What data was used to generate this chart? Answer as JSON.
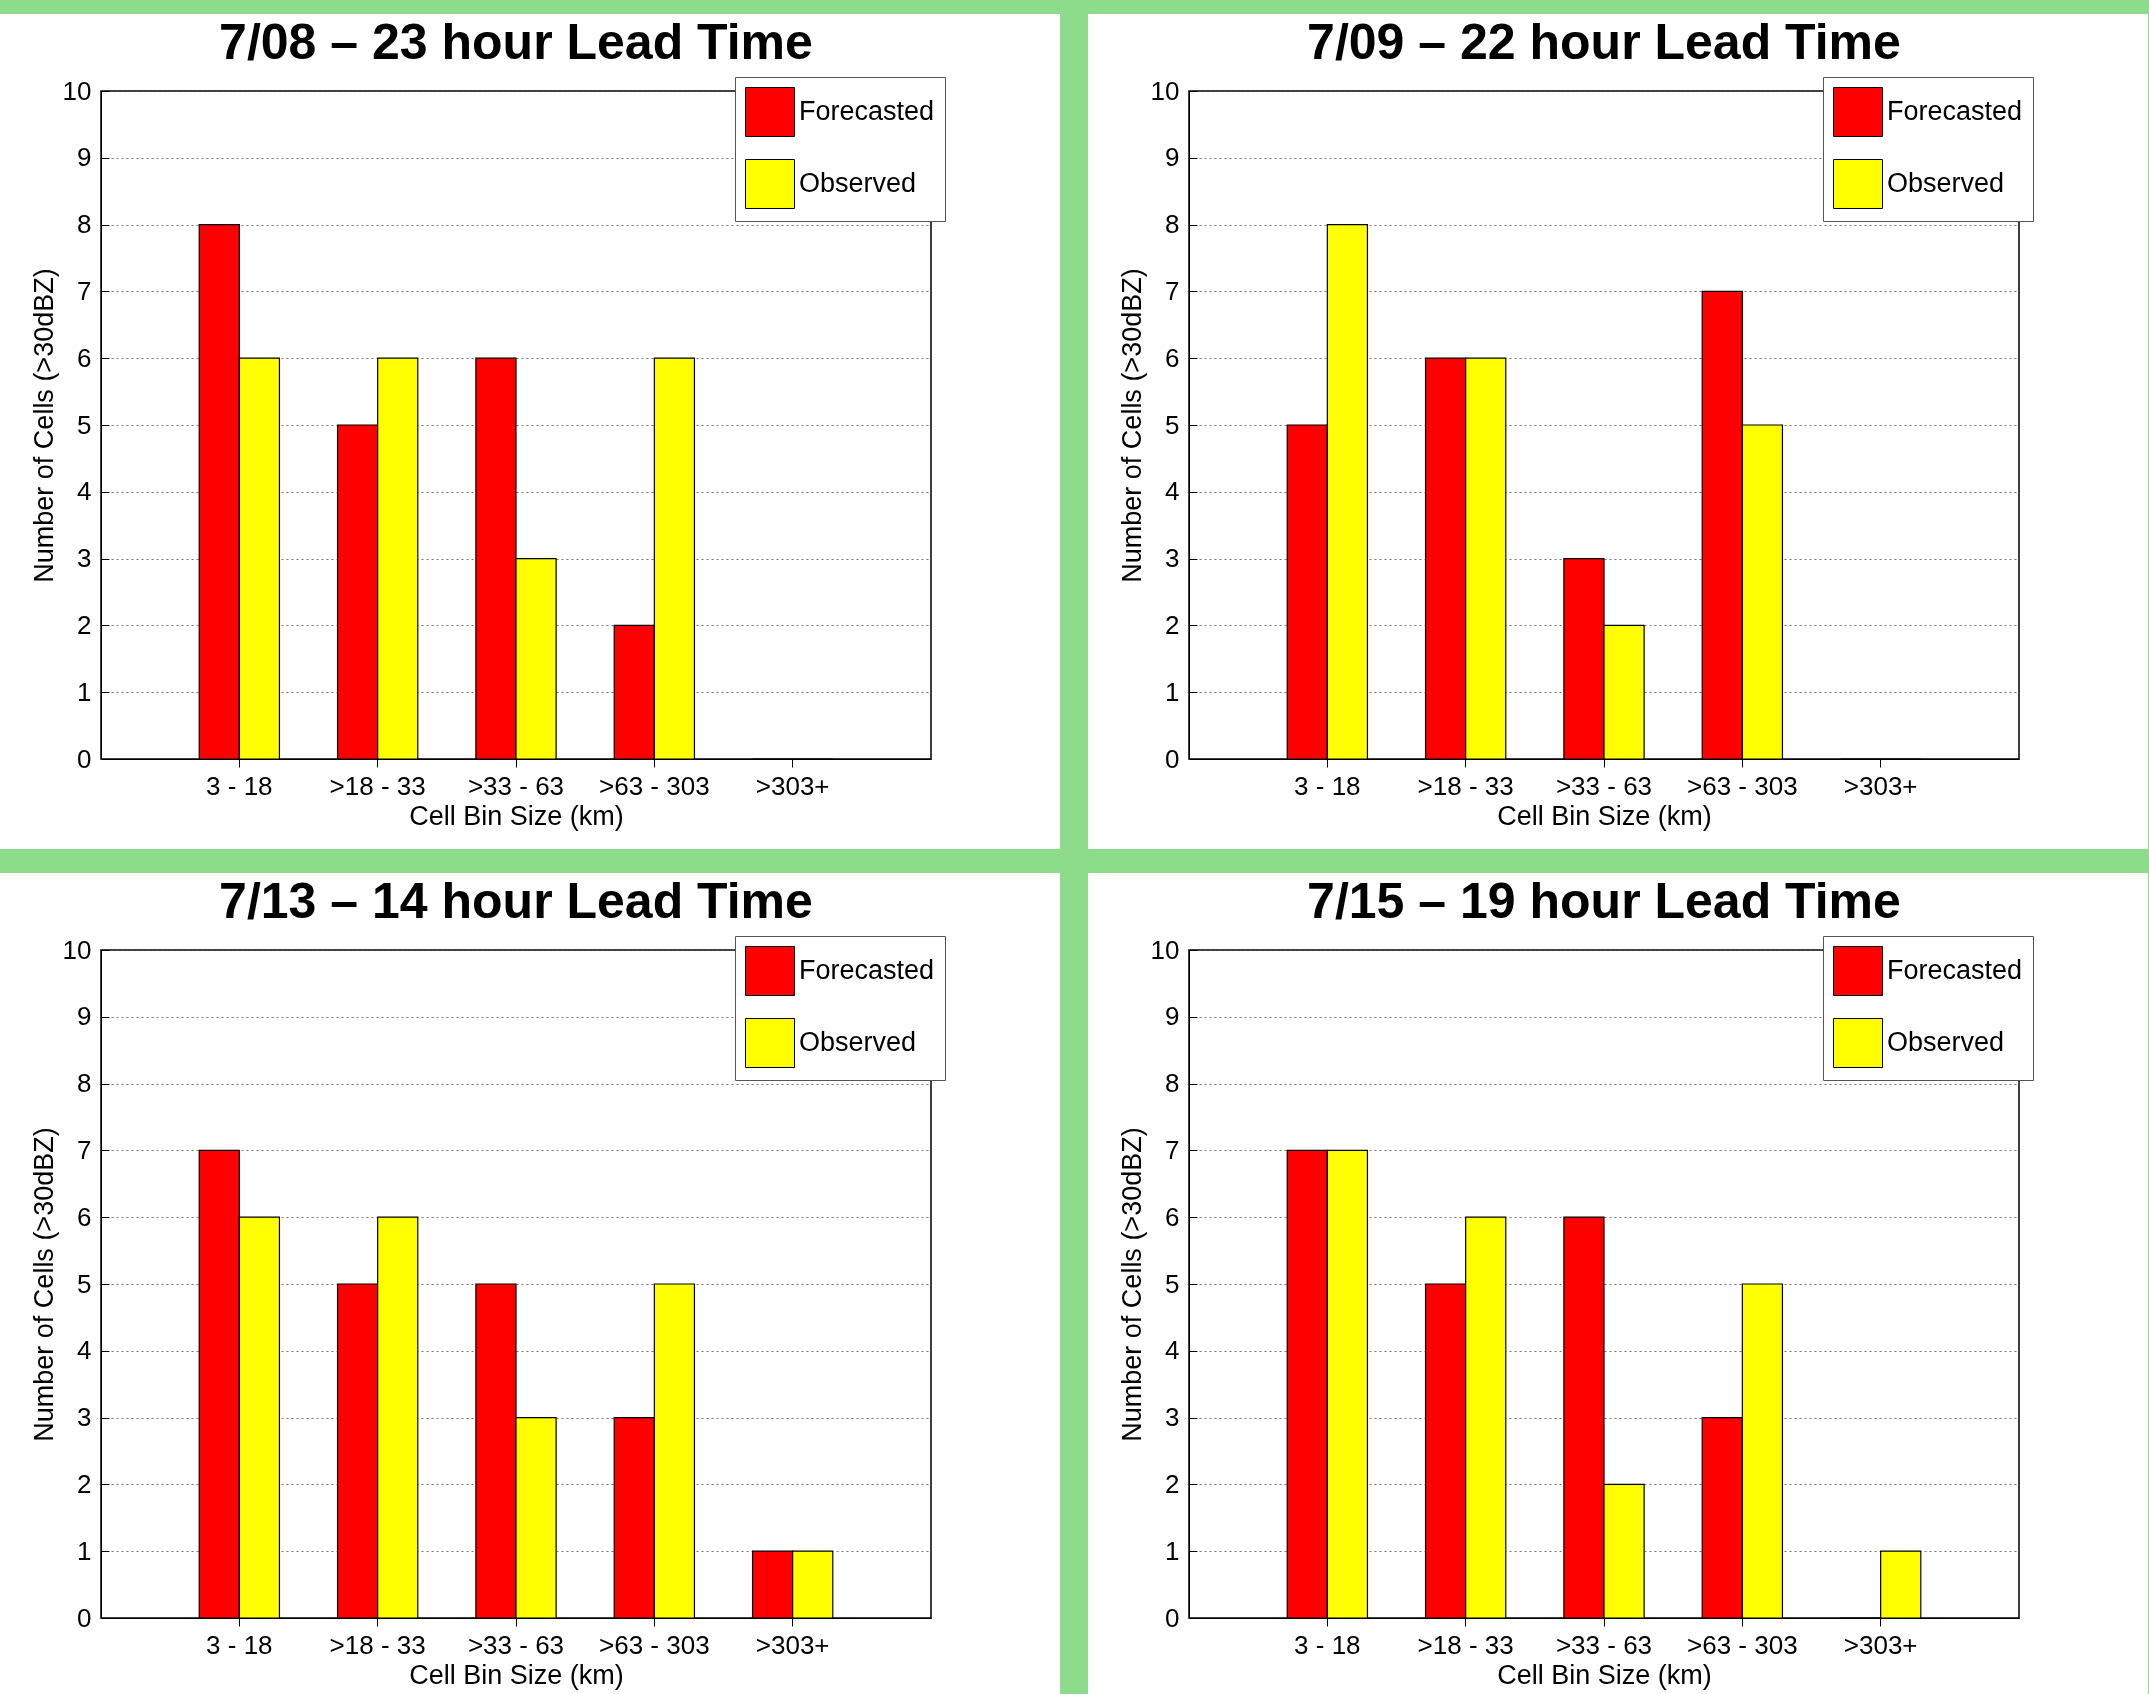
{
  "chart_data": [
    {
      "type": "bar",
      "title": "7/08 – 23 hour Lead Time",
      "xlabel": "Cell Bin Size (km)",
      "ylabel": "Number of Cells (>30dBZ)",
      "categories": [
        "3 - 18",
        ">18 - 33",
        ">33 - 63",
        ">63 - 303",
        ">303+"
      ],
      "series": [
        {
          "name": "Forecasted",
          "color": "#ff0000",
          "values": [
            8,
            5,
            6,
            2,
            0
          ]
        },
        {
          "name": "Observed",
          "color": "#ffff00",
          "values": [
            6,
            6,
            3,
            6,
            0
          ]
        }
      ],
      "ylim": [
        0,
        10
      ],
      "yticks": [
        0,
        1,
        2,
        3,
        4,
        5,
        6,
        7,
        8,
        9,
        10
      ],
      "grid": "y",
      "legend": "top right"
    },
    {
      "type": "bar",
      "title": "7/09 – 22 hour Lead Time",
      "xlabel": "Cell Bin Size (km)",
      "ylabel": "Number of Cells (>30dBZ)",
      "categories": [
        "3 - 18",
        ">18 - 33",
        ">33 - 63",
        ">63 - 303",
        ">303+"
      ],
      "series": [
        {
          "name": "Forecasted",
          "color": "#ff0000",
          "values": [
            5,
            6,
            3,
            7,
            0
          ]
        },
        {
          "name": "Observed",
          "color": "#ffff00",
          "values": [
            8,
            6,
            2,
            5,
            0
          ]
        }
      ],
      "ylim": [
        0,
        10
      ],
      "yticks": [
        0,
        1,
        2,
        3,
        4,
        5,
        6,
        7,
        8,
        9,
        10
      ],
      "grid": "y",
      "legend": "top right"
    },
    {
      "type": "bar",
      "title": "7/13 – 14 hour Lead Time",
      "xlabel": "Cell Bin Size (km)",
      "ylabel": "Number of Cells (>30dBZ)",
      "categories": [
        "3 - 18",
        ">18 - 33",
        ">33 - 63",
        ">63 - 303",
        ">303+"
      ],
      "series": [
        {
          "name": "Forecasted",
          "color": "#ff0000",
          "values": [
            7,
            5,
            5,
            3,
            1
          ]
        },
        {
          "name": "Observed",
          "color": "#ffff00",
          "values": [
            6,
            6,
            3,
            5,
            1
          ]
        }
      ],
      "ylim": [
        0,
        10
      ],
      "yticks": [
        0,
        1,
        2,
        3,
        4,
        5,
        6,
        7,
        8,
        9,
        10
      ],
      "grid": "y",
      "legend": "top right"
    },
    {
      "type": "bar",
      "title": "7/15 – 19 hour Lead Time",
      "xlabel": "Cell Bin Size (km)",
      "ylabel": "Number of Cells (>30dBZ)",
      "categories": [
        "3 - 18",
        ">18 - 33",
        ">33 - 63",
        ">63 - 303",
        ">303+"
      ],
      "series": [
        {
          "name": "Forecasted",
          "color": "#ff0000",
          "values": [
            7,
            5,
            6,
            3,
            0
          ]
        },
        {
          "name": "Observed",
          "color": "#ffff00",
          "values": [
            7,
            6,
            2,
            5,
            1
          ]
        }
      ],
      "ylim": [
        0,
        10
      ],
      "yticks": [
        0,
        1,
        2,
        3,
        4,
        5,
        6,
        7,
        8,
        9,
        10
      ],
      "grid": "y",
      "legend": "top right"
    }
  ]
}
